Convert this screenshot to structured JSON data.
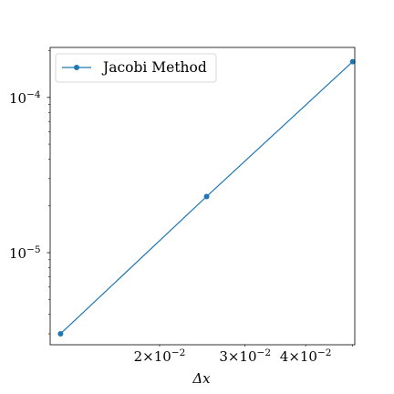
{
  "chart_data": {
    "type": "line",
    "xscale": "log",
    "yscale": "log",
    "xlabel": "Δx",
    "ylabel": "",
    "title": "",
    "xlim": [
      0.0119,
      0.0505
    ],
    "ylim": [
      2.55e-06,
      0.00021
    ],
    "grid": false,
    "legend_position": "top-left",
    "series": [
      {
        "name": "Jacobi Method",
        "color": "#1f77b4",
        "marker": "circle",
        "x": [
          0.0125,
          0.025,
          0.05
        ],
        "y": [
          3e-06,
          2.3e-05,
          0.00017
        ]
      }
    ],
    "x_ticks": [
      {
        "value": 0.02,
        "mantissa": "2",
        "base": "10",
        "exp": "−2"
      },
      {
        "value": 0.03,
        "mantissa": "3",
        "base": "10",
        "exp": "−2"
      },
      {
        "value": 0.04,
        "mantissa": "4",
        "base": "10",
        "exp": "−2"
      }
    ],
    "y_ticks": [
      {
        "value": 1e-05,
        "base": "10",
        "exp": "−5"
      },
      {
        "value": 0.0001,
        "base": "10",
        "exp": "−4"
      }
    ],
    "times_symbol": "×"
  }
}
